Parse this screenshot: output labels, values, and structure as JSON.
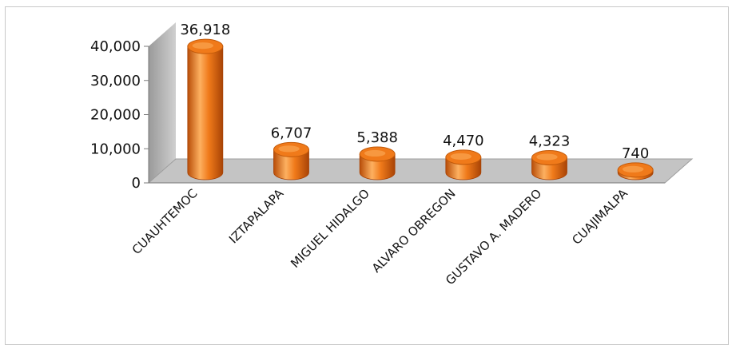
{
  "chart_data": {
    "type": "bar",
    "style": "3d-cylinder",
    "categories": [
      "CUAUHTEMOC",
      "IZTAPALAPA",
      "MIGUEL HIDALGO",
      "ALVARO OBREGON",
      "GUSTAVO A. MADERO",
      "CUAJIMALPA"
    ],
    "values": [
      36918,
      6707,
      5388,
      4470,
      4323,
      740
    ],
    "value_labels": [
      "36,918",
      "6,707",
      "5,388",
      "4,470",
      "4,323",
      "740"
    ],
    "y_ticks": [
      "0",
      "10,000",
      "20,000",
      "30,000",
      "40,000"
    ],
    "ylim": [
      0,
      40000
    ],
    "grid": false,
    "title": "",
    "xlabel": "",
    "ylabel": "",
    "colors": {
      "bar_main": "#f07a1a",
      "bar_dark": "#b84d08",
      "bar_light": "#fdb060",
      "floor": "#c4c4c4",
      "wall": "#bdbdbd",
      "axis": "#7a7a7a"
    }
  }
}
